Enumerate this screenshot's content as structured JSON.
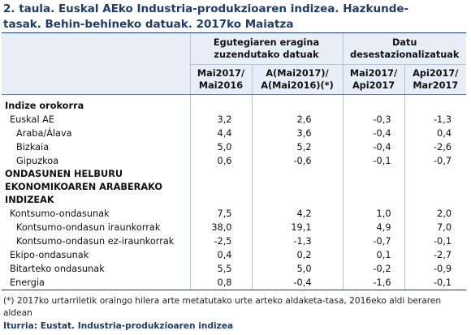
{
  "title_line1": "2. taula. Euskal AEko Industria-produkzioaren indizea. Hazkunde-",
  "title_line2": "tasak. Behin-behineko datuak. 2017ko Maiatza",
  "header": {
    "group1": "Egutegiaren eragina zuzendutako datuak",
    "group2": "Datu desestazionalizatuak",
    "cols": [
      "Mai2017/ Mai2016",
      "A(Mai2017)/ A(Mai2016)(*)",
      "Mai2017/ Api2017",
      "Api2017/ Mar2017"
    ]
  },
  "section1": "Indize orokorra",
  "rows1": [
    {
      "label": "Euskal AE",
      "v": [
        "3,2",
        "2,6",
        "-0,3",
        "-1,3"
      ]
    },
    {
      "label": "Araba/Álava",
      "v": [
        "4,4",
        "3,6",
        "-0,4",
        "0,4"
      ]
    },
    {
      "label": "Bizkaia",
      "v": [
        "5,0",
        "5,2",
        "-0,4",
        "-2,6"
      ]
    },
    {
      "label": "Gipuzkoa",
      "v": [
        "0,6",
        "-0,6",
        "-0,1",
        "-0,7"
      ]
    }
  ],
  "section2": [
    "ONDASUNEN HELBURU",
    "EKONOMIKOAREN ARABERAKO",
    "INDIZEAK"
  ],
  "rows2": [
    {
      "label": "Kontsumo-ondasunak",
      "v": [
        "7,5",
        "4,2",
        "1,0",
        "2,0"
      ]
    },
    {
      "label": "Kontsumo-ondasun iraunkorrak",
      "v": [
        "38,0",
        "19,1",
        "4,9",
        "7,0"
      ]
    },
    {
      "label": "Kontsumo-ondasun ez-iraunkorrak",
      "v": [
        "-2,5",
        "-1,3",
        "-0,7",
        "-0,1"
      ]
    },
    {
      "label": "Ekipo-ondasunak",
      "v": [
        "0,4",
        "0,2",
        "0,1",
        "-2,7"
      ]
    },
    {
      "label": "Bitarteko ondasunak",
      "v": [
        "5,5",
        "5,0",
        "-0,2",
        "-0,9"
      ]
    },
    {
      "label": "Energia",
      "v": [
        "0,8",
        "-0,4",
        "-1,6",
        "-0,1"
      ]
    }
  ],
  "note": "(*) 2017ko urtarriletik oraingo hilera arte metatutako urte arteko aldaketa-tasa, 2016eko aldi beraren aldean",
  "source": "Iturria: Eustat. Industria-produkzioaren indizea"
}
